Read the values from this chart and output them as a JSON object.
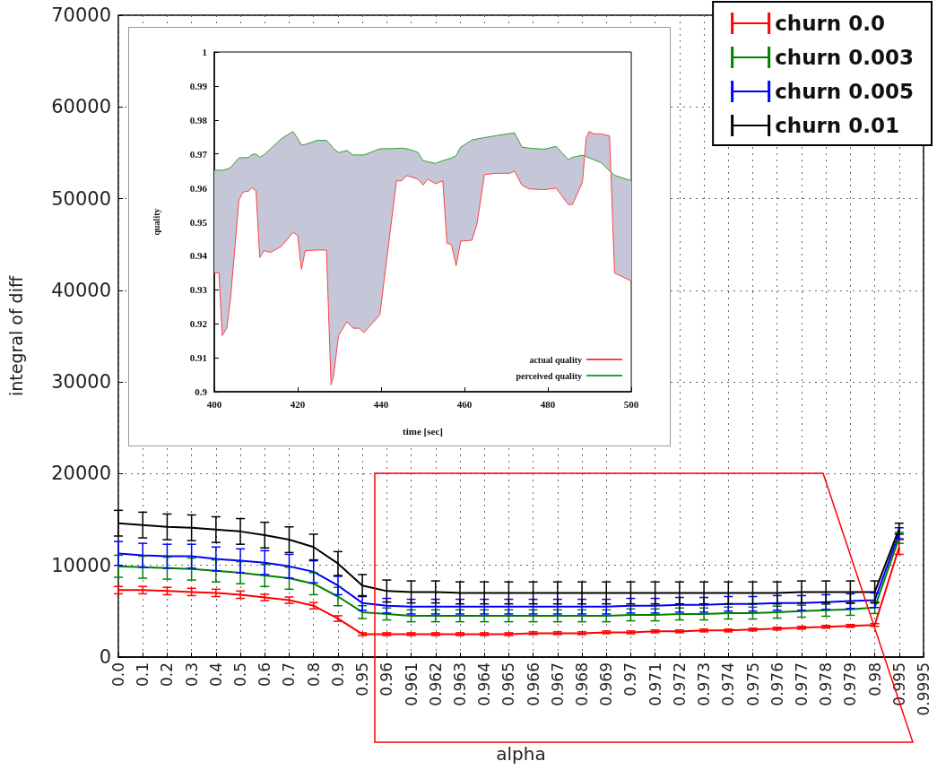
{
  "chart_data": [
    {
      "type": "line",
      "xlabel": "alpha",
      "ylabel": "integral of diff",
      "categories": [
        "0.0",
        "0.1",
        "0.2",
        "0.3",
        "0.4",
        "0.5",
        "0.6",
        "0.7",
        "0.8",
        "0.9",
        "0.95",
        "0.96",
        "0.961",
        "0.962",
        "0.963",
        "0.964",
        "0.965",
        "0.966",
        "0.967",
        "0.968",
        "0.969",
        "0.97",
        "0.971",
        "0.972",
        "0.973",
        "0.974",
        "0.975",
        "0.976",
        "0.977",
        "0.978",
        "0.979",
        "0.98",
        "0.995",
        "0.9995"
      ],
      "ylim": [
        0,
        70000
      ],
      "yticks": [
        0,
        10000,
        20000,
        30000,
        40000,
        50000,
        60000,
        70000
      ],
      "grid": true,
      "legend": "top right",
      "marker": "none",
      "series": [
        {
          "name": "churn 0.0",
          "color": "#ff0000",
          "values": [
            7300,
            7300,
            7200,
            7100,
            7000,
            6800,
            6500,
            6200,
            5600,
            4200,
            2500,
            2500,
            2500,
            2500,
            2500,
            2500,
            2500,
            2600,
            2600,
            2600,
            2700,
            2700,
            2800,
            2800,
            2900,
            2900,
            3000,
            3100,
            3200,
            3300,
            3400,
            3500,
            12000,
            null
          ],
          "errors": [
            400,
            400,
            400,
            400,
            400,
            400,
            350,
            350,
            350,
            300,
            150,
            150,
            150,
            150,
            150,
            150,
            150,
            150,
            150,
            150,
            150,
            150,
            150,
            150,
            150,
            150,
            150,
            150,
            150,
            150,
            150,
            150,
            800,
            null
          ]
        },
        {
          "name": "churn 0.003",
          "color": "#008000",
          "values": [
            9900,
            9800,
            9700,
            9600,
            9400,
            9200,
            8900,
            8600,
            8000,
            6600,
            4900,
            4700,
            4500,
            4500,
            4500,
            4500,
            4500,
            4500,
            4500,
            4500,
            4500,
            4600,
            4600,
            4700,
            4700,
            4800,
            4800,
            4900,
            5000,
            5100,
            5200,
            5400,
            13000,
            null
          ],
          "errors": [
            1200,
            1200,
            1200,
            1200,
            1200,
            1200,
            1200,
            1200,
            1200,
            1000,
            700,
            650,
            650,
            650,
            650,
            650,
            650,
            650,
            650,
            650,
            650,
            650,
            650,
            650,
            650,
            650,
            650,
            650,
            650,
            650,
            650,
            650,
            600,
            null
          ]
        },
        {
          "name": "churn 0.005",
          "color": "#0000ff",
          "values": [
            11300,
            11100,
            11000,
            11000,
            10700,
            10500,
            10300,
            9900,
            9300,
            7800,
            5900,
            5600,
            5500,
            5500,
            5500,
            5500,
            5500,
            5500,
            5500,
            5500,
            5500,
            5600,
            5600,
            5700,
            5700,
            5800,
            5800,
            5900,
            5900,
            6000,
            6100,
            6200,
            13500,
            null
          ],
          "errors": [
            1300,
            1300,
            1300,
            1300,
            1300,
            1300,
            1300,
            1300,
            1200,
            1000,
            800,
            800,
            800,
            800,
            800,
            800,
            800,
            800,
            800,
            800,
            800,
            800,
            800,
            800,
            800,
            800,
            800,
            800,
            800,
            800,
            800,
            800,
            600,
            null
          ]
        },
        {
          "name": "churn 0.01",
          "color": "#000000",
          "values": [
            14600,
            14400,
            14200,
            14100,
            13900,
            13700,
            13300,
            12800,
            12000,
            10200,
            7800,
            7200,
            7100,
            7100,
            7000,
            7000,
            7000,
            7000,
            7000,
            7000,
            7000,
            7000,
            7000,
            7000,
            7000,
            7000,
            7000,
            7000,
            7100,
            7100,
            7100,
            7100,
            14000,
            null
          ],
          "errors": [
            1400,
            1400,
            1400,
            1400,
            1400,
            1400,
            1400,
            1400,
            1400,
            1300,
            1200,
            1200,
            1200,
            1200,
            1200,
            1200,
            1200,
            1200,
            1200,
            1200,
            1200,
            1200,
            1200,
            1200,
            1200,
            1200,
            1200,
            1200,
            1200,
            1200,
            1200,
            1200,
            600,
            null
          ]
        }
      ]
    },
    {
      "type": "line",
      "xlabel": "time [sec]",
      "ylabel": "quality",
      "xlim": [
        400,
        500
      ],
      "xticks": [
        400,
        420,
        440,
        460,
        480,
        500
      ],
      "ylim": [
        0.9,
        1
      ],
      "yticks": [
        0.9,
        0.91,
        0.92,
        0.93,
        0.94,
        0.95,
        0.96,
        0.97,
        0.98,
        0.99,
        1
      ],
      "legend": "bottom right",
      "marker": "none",
      "x": [
        400,
        401.1,
        401.9,
        403,
        403.9,
        405.9,
        406.9,
        408.2,
        409,
        410,
        410.9,
        411.9,
        413.5,
        416.1,
        418.9,
        420,
        420.9,
        421.8,
        424.7,
        426.9,
        428,
        428.6,
        429.8,
        431.8,
        433.3,
        434.7,
        435.9,
        439.7,
        443.7,
        444.9,
        446.2,
        448.8,
        450.1,
        451.2,
        453,
        454.8,
        455.8,
        456.9,
        458,
        459.1,
        461.8,
        463,
        464.8,
        467.7,
        470.9,
        472,
        473.8,
        475.5,
        479.1,
        482,
        484.9,
        485.9,
        488.3,
        489.2,
        489.9,
        491,
        492.8,
        494.8,
        496,
        500
      ],
      "series": [
        {
          "name": "actual quality",
          "color": "#ff4040",
          "values": [
            0.935,
            0.935,
            0.9165,
            0.9187,
            0.9275,
            0.9564,
            0.9588,
            0.959,
            0.96,
            0.9592,
            0.9395,
            0.9415,
            0.941,
            0.9428,
            0.9469,
            0.946,
            0.936,
            0.9415,
            0.9417,
            0.9417,
            0.902,
            0.9046,
            0.9165,
            0.9206,
            0.9187,
            0.9187,
            0.9174,
            0.9226,
            0.9621,
            0.9621,
            0.9636,
            0.9626,
            0.9608,
            0.9626,
            0.9612,
            0.9621,
            0.9437,
            0.9433,
            0.9371,
            0.9443,
            0.9446,
            0.9494,
            0.9639,
            0.9643,
            0.9643,
            0.9649,
            0.9608,
            0.9597,
            0.9595,
            0.9599,
            0.9551,
            0.9551,
            0.9617,
            0.9748,
            0.9766,
            0.9759,
            0.9759,
            0.9753,
            0.9349,
            0.9326
          ]
        },
        {
          "name": "perceived quality",
          "color": "#30a030",
          "values": [
            0.9652,
            0.9652,
            0.9652,
            0.9655,
            0.966,
            0.9688,
            0.9689,
            0.9689,
            0.9698,
            0.97,
            0.969,
            0.9697,
            0.9715,
            0.9745,
            0.9766,
            0.9745,
            0.9726,
            0.9728,
            0.974,
            0.974,
            0.9725,
            0.9716,
            0.9704,
            0.971,
            0.9697,
            0.9697,
            0.9697,
            0.9715,
            0.9716,
            0.9717,
            0.9715,
            0.9705,
            0.968,
            0.9677,
            0.9672,
            0.968,
            0.9684,
            0.9688,
            0.9695,
            0.972,
            0.9741,
            0.9744,
            0.9748,
            0.9754,
            0.976,
            0.9762,
            0.972,
            0.9717,
            0.9714,
            0.9722,
            0.9683,
            0.969,
            0.9696,
            0.9692,
            0.9688,
            0.9683,
            0.9674,
            0.965,
            0.9637,
            0.9621
          ],
          "lower": [
            0.935,
            0.935,
            0.9165,
            0.9187,
            0.9275,
            0.9564,
            0.9588,
            0.959,
            0.96,
            0.9592,
            0.9395,
            0.9415,
            0.941,
            0.9428,
            0.9469,
            0.946,
            0.936,
            0.9415,
            0.9417,
            0.9417,
            0.902,
            0.9046,
            0.9165,
            0.9206,
            0.9187,
            0.9187,
            0.9174,
            0.9226,
            0.9621,
            0.9621,
            0.9636,
            0.9626,
            0.9608,
            0.9626,
            0.9612,
            0.9621,
            0.9437,
            0.9433,
            0.9371,
            0.9443,
            0.9446,
            0.9494,
            0.9639,
            0.9643,
            0.9643,
            0.9649,
            0.9608,
            0.9597,
            0.9595,
            0.9599,
            0.9551,
            0.9551,
            0.9617,
            0.9748,
            0.9766,
            0.9759,
            0.9759,
            0.9753,
            0.9349,
            0.9326
          ],
          "upper": [
            0.9652,
            0.9652,
            0.9652,
            0.9655,
            0.966,
            0.9688,
            0.9689,
            0.9689,
            0.9698,
            0.97,
            0.969,
            0.9697,
            0.9715,
            0.9745,
            0.9766,
            0.9745,
            0.9726,
            0.9728,
            0.974,
            0.974,
            0.9725,
            0.9716,
            0.9704,
            0.971,
            0.9697,
            0.9697,
            0.9697,
            0.9715,
            0.9716,
            0.9717,
            0.9715,
            0.9705,
            0.968,
            0.9677,
            0.9672,
            0.968,
            0.9684,
            0.9688,
            0.9695,
            0.972,
            0.9741,
            0.9744,
            0.9748,
            0.9754,
            0.976,
            0.9762,
            0.972,
            0.9717,
            0.9714,
            0.9722,
            0.9683,
            0.969,
            0.9696,
            0.9692,
            0.9688,
            0.9683,
            0.9674,
            0.965,
            0.9637,
            0.9621
          ]
        }
      ]
    }
  ]
}
